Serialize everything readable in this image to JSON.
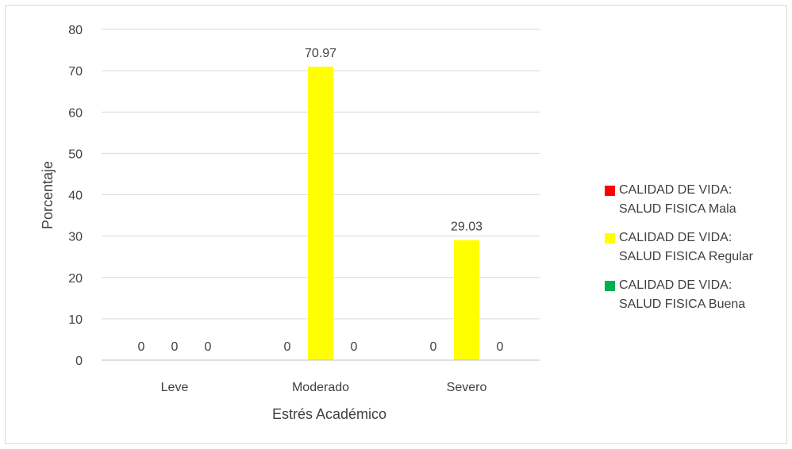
{
  "chart_data": {
    "type": "bar",
    "categories": [
      "Leve",
      "Moderado",
      "Severo"
    ],
    "series": [
      {
        "name": "CALIDAD DE VIDA:\nSALUD FISICA Mala",
        "color": "#ff0000",
        "values": [
          0,
          0,
          0
        ]
      },
      {
        "name": "CALIDAD DE VIDA:\nSALUD FISICA Regular",
        "color": "#ffff00",
        "values": [
          0,
          70.97,
          29.03
        ]
      },
      {
        "name": "CALIDAD DE VIDA:\nSALUD FISICA Buena",
        "color": "#00b050",
        "values": [
          0,
          0,
          0
        ]
      }
    ],
    "data_labels": [
      [
        "0",
        "0",
        "0"
      ],
      [
        "0",
        "70.97",
        "0"
      ],
      [
        "0",
        "29.03",
        "0"
      ]
    ],
    "xlabel": "Estrés Académico",
    "ylabel": "Porcentaje",
    "ylim": [
      0,
      80
    ],
    "yticks": [
      "0",
      "10",
      "20",
      "30",
      "40",
      "50",
      "60",
      "70",
      "80"
    ],
    "grid": true,
    "legend_position": "right"
  }
}
